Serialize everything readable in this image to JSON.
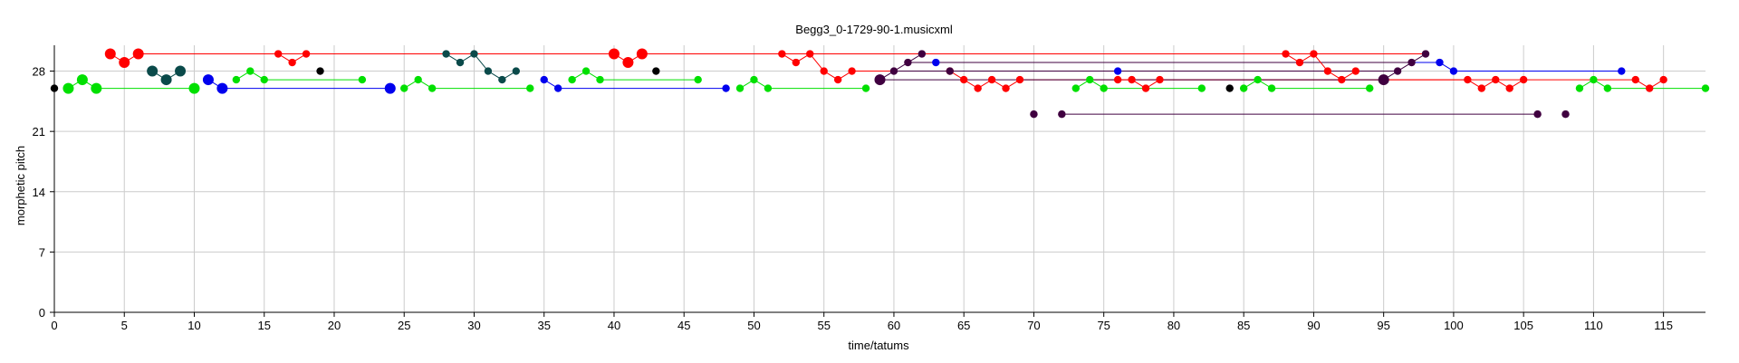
{
  "chart_data": {
    "type": "scatter",
    "title": "Begg3_0-1729-90-1.musicxml",
    "xlabel": "time/tatums",
    "ylabel": "morphetic pitch",
    "xlim": [
      0,
      118
    ],
    "ylim": [
      0,
      31
    ],
    "x_ticks": [
      0,
      5,
      10,
      15,
      20,
      25,
      30,
      35,
      40,
      45,
      50,
      55,
      60,
      65,
      70,
      75,
      80,
      85,
      90,
      95,
      100,
      105,
      110,
      115
    ],
    "y_ticks": [
      0,
      7,
      14,
      21,
      28
    ],
    "grid": true,
    "legend": "none",
    "series": [
      {
        "color": "#00e000",
        "marker_size": "large",
        "points": [
          [
            1,
            26
          ],
          [
            2,
            27
          ],
          [
            3,
            26
          ],
          [
            10,
            26
          ]
        ],
        "sustain_segments": [
          [
            3,
            10,
            26
          ]
        ]
      },
      {
        "color": "#00e000",
        "marker_size": "small",
        "points": [
          [
            13,
            27
          ],
          [
            14,
            28
          ],
          [
            15,
            27
          ],
          [
            22,
            27
          ],
          [
            25,
            26
          ],
          [
            26,
            27
          ],
          [
            27,
            26
          ],
          [
            34,
            26
          ],
          [
            37,
            27
          ],
          [
            38,
            28
          ],
          [
            39,
            27
          ],
          [
            46,
            27
          ],
          [
            49,
            26
          ],
          [
            50,
            27
          ],
          [
            51,
            26
          ],
          [
            58,
            26
          ],
          [
            73,
            26
          ],
          [
            74,
            27
          ],
          [
            75,
            26
          ],
          [
            82,
            26
          ],
          [
            85,
            26
          ],
          [
            86,
            27
          ],
          [
            87,
            26
          ],
          [
            94,
            26
          ],
          [
            109,
            26
          ],
          [
            110,
            27
          ],
          [
            111,
            26
          ],
          [
            118,
            26
          ]
        ],
        "sustain_segments": [
          [
            15,
            22,
            27
          ],
          [
            27,
            34,
            26
          ],
          [
            39,
            46,
            27
          ],
          [
            51,
            58,
            26
          ],
          [
            75,
            82,
            26
          ],
          [
            87,
            94,
            26
          ],
          [
            111,
            118,
            26
          ]
        ]
      },
      {
        "color": "#ff0000",
        "marker_size": "large",
        "points": [
          [
            4,
            30
          ],
          [
            5,
            29
          ],
          [
            6,
            30
          ],
          [
            40,
            30
          ],
          [
            41,
            29
          ],
          [
            42,
            30
          ]
        ],
        "sustain_segments": [
          [
            6,
            40,
            30
          ],
          [
            42,
            98,
            30
          ]
        ]
      },
      {
        "color": "#ff0000",
        "marker_size": "small",
        "points": [
          [
            16,
            30
          ],
          [
            17,
            29
          ],
          [
            18,
            30
          ],
          [
            52,
            30
          ],
          [
            53,
            29
          ],
          [
            54,
            30
          ],
          [
            55,
            28
          ],
          [
            56,
            27
          ],
          [
            57,
            28
          ],
          [
            64,
            28
          ],
          [
            65,
            27
          ],
          [
            66,
            26
          ],
          [
            67,
            27
          ],
          [
            68,
            26
          ],
          [
            69,
            27
          ],
          [
            76,
            27
          ],
          [
            77,
            27
          ],
          [
            78,
            26
          ],
          [
            79,
            27
          ],
          [
            88,
            30
          ],
          [
            89,
            29
          ],
          [
            90,
            30
          ],
          [
            91,
            28
          ],
          [
            92,
            27
          ],
          [
            93,
            28
          ],
          [
            101,
            27
          ],
          [
            102,
            26
          ],
          [
            103,
            27
          ],
          [
            104,
            26
          ],
          [
            105,
            27
          ],
          [
            113,
            27
          ],
          [
            114,
            26
          ],
          [
            115,
            27
          ]
        ],
        "sustain_segments": [
          [
            57,
            91,
            28
          ],
          [
            79,
            113,
            27
          ],
          [
            69,
            101,
            27
          ]
        ]
      },
      {
        "color": "#0000ee",
        "marker_size": "large",
        "points": [
          [
            11,
            27
          ],
          [
            12,
            26
          ],
          [
            24,
            26
          ]
        ],
        "sustain_segments": [
          [
            12,
            24,
            26
          ]
        ]
      },
      {
        "color": "#0000ee",
        "marker_size": "small",
        "points": [
          [
            35,
            27
          ],
          [
            36,
            26
          ],
          [
            48,
            26
          ],
          [
            63,
            29
          ],
          [
            76,
            28
          ],
          [
            99,
            29
          ],
          [
            100,
            28
          ],
          [
            112,
            28
          ]
        ],
        "sustain_segments": [
          [
            36,
            48,
            26
          ],
          [
            63,
            99,
            29
          ],
          [
            100,
            112,
            28
          ]
        ]
      },
      {
        "color": "#0a4a4a",
        "marker_size": "large",
        "points": [
          [
            7,
            28
          ],
          [
            8,
            27
          ],
          [
            9,
            28
          ]
        ],
        "sustain_segments": []
      },
      {
        "color": "#0a4a4a",
        "marker_size": "small",
        "points": [
          [
            28,
            30
          ],
          [
            29,
            29
          ],
          [
            30,
            30
          ],
          [
            31,
            28
          ],
          [
            32,
            27
          ],
          [
            33,
            28
          ]
        ],
        "sustain_segments": []
      },
      {
        "color": "#000000",
        "marker_size": "small",
        "points": [
          [
            0,
            26
          ],
          [
            19,
            28
          ],
          [
            43,
            28
          ],
          [
            84,
            26
          ]
        ],
        "sustain_segments": []
      },
      {
        "color": "#400040",
        "marker_size": "small",
        "points": [
          [
            59,
            27
          ],
          [
            60,
            28
          ],
          [
            61,
            29
          ],
          [
            62,
            30
          ],
          [
            64,
            28
          ],
          [
            70,
            23
          ],
          [
            72,
            23
          ],
          [
            95,
            27
          ],
          [
            96,
            28
          ],
          [
            97,
            29
          ],
          [
            98,
            30
          ],
          [
            106,
            23
          ],
          [
            108,
            23
          ]
        ],
        "sustain_segments": [
          [
            59,
            95,
            27
          ],
          [
            60,
            96,
            28
          ],
          [
            61,
            97,
            29
          ],
          [
            72,
            106,
            23
          ]
        ]
      },
      {
        "color": "#400040",
        "marker_size": "large",
        "points": [
          [
            59,
            27
          ],
          [
            95,
            27
          ]
        ],
        "sustain_segments": []
      }
    ]
  }
}
